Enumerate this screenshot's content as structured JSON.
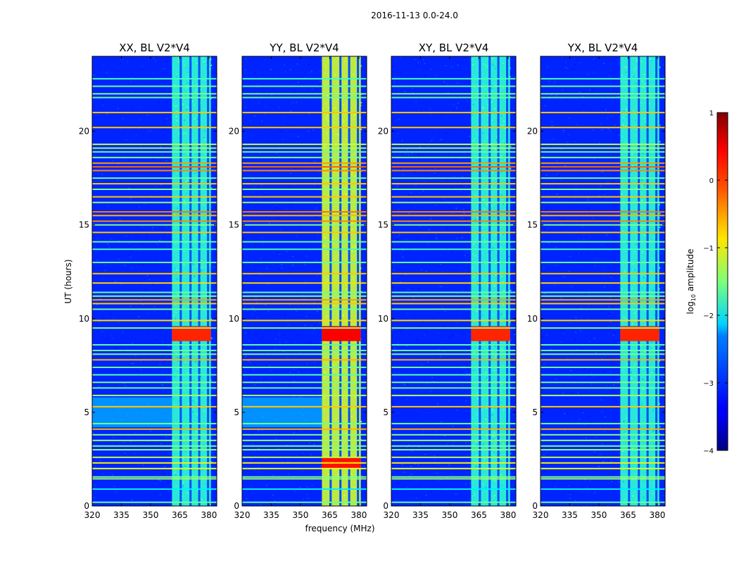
{
  "figure": {
    "suptitle": "2016-11-13 0.0-24.0"
  },
  "chart_data": {
    "type": "heatmap",
    "suptitle": "2016-11-13 0.0-24.0",
    "xlabel": "frequency (MHz)",
    "ylabel": "UT (hours)",
    "xlim": [
      320,
      384
    ],
    "ylim": [
      0,
      24
    ],
    "xticks": [
      320,
      335,
      350,
      365,
      380
    ],
    "yticks": [
      0,
      5,
      10,
      15,
      20
    ],
    "colorbar": {
      "label": "log10 amplitude",
      "label_main": "log",
      "label_sub": "10",
      "label_tail": " amplitude",
      "range": [
        -4,
        1
      ],
      "ticks": [
        1,
        0,
        -1,
        -2,
        -3,
        -4
      ],
      "tick_labels": [
        "1",
        "0",
        "−1",
        "−2",
        "−3",
        "−4"
      ],
      "colormap": "jet"
    },
    "panels": [
      {
        "title": "XX, BL V2*V4",
        "key": "xx",
        "band_level": -1.9,
        "bright_rows": [
          [
            8.8,
            9.6,
            0.2
          ]
        ]
      },
      {
        "title": "YY, BL V2*V4",
        "key": "yy",
        "band_level": -1.1,
        "bright_rows": [
          [
            8.8,
            9.6,
            0.4
          ],
          [
            2.0,
            2.6,
            0.3
          ]
        ]
      },
      {
        "title": "XY, BL V2*V4",
        "key": "xy",
        "band_level": -1.9,
        "bright_rows": [
          [
            8.8,
            9.6,
            0.2
          ]
        ]
      },
      {
        "title": "YX, BL V2*V4",
        "key": "yx",
        "band_level": -1.9,
        "bright_rows": [
          [
            8.8,
            9.6,
            0.2
          ]
        ]
      }
    ],
    "background_level": -3.2,
    "band_frequency_range": [
      361,
      381
    ],
    "band_gaps_mhz": [
      365.5,
      370.5,
      375.0,
      379.5
    ],
    "rfi_lines_ut": [
      {
        "ut": 0.2,
        "level": -1.6
      },
      {
        "ut": 0.9,
        "level": -2.2
      },
      {
        "ut": 1.45,
        "level": -1.4
      },
      {
        "ut": 1.55,
        "level": -1.5
      },
      {
        "ut": 2.0,
        "level": -1.0
      },
      {
        "ut": 2.3,
        "level": -0.8
      },
      {
        "ut": 2.6,
        "level": -1.2
      },
      {
        "ut": 3.0,
        "level": -1.4
      },
      {
        "ut": 3.2,
        "level": -1.5
      },
      {
        "ut": 3.5,
        "level": -1.4
      },
      {
        "ut": 3.8,
        "level": -1.5
      },
      {
        "ut": 4.1,
        "level": -0.5
      },
      {
        "ut": 4.4,
        "level": -1.6
      },
      {
        "ut": 5.3,
        "level": -0.6
      },
      {
        "ut": 5.9,
        "level": -1.3
      },
      {
        "ut": 6.3,
        "level": -1.6
      },
      {
        "ut": 6.6,
        "level": -1.5
      },
      {
        "ut": 7.0,
        "level": -1.7
      },
      {
        "ut": 7.4,
        "level": -1.6
      },
      {
        "ut": 7.8,
        "level": -0.5
      },
      {
        "ut": 8.1,
        "level": -1.5
      },
      {
        "ut": 8.3,
        "level": -1.6
      },
      {
        "ut": 8.6,
        "level": -1.7
      },
      {
        "ut": 9.5,
        "level": -1.5
      },
      {
        "ut": 9.9,
        "level": -0.7
      },
      {
        "ut": 10.5,
        "level": -1.6
      },
      {
        "ut": 10.8,
        "level": -0.6
      },
      {
        "ut": 11.0,
        "level": -0.4
      },
      {
        "ut": 11.2,
        "level": -1.5
      },
      {
        "ut": 11.4,
        "level": -1.6
      },
      {
        "ut": 11.9,
        "level": -0.7
      },
      {
        "ut": 12.4,
        "level": -0.6
      },
      {
        "ut": 13.0,
        "level": -1.6
      },
      {
        "ut": 13.7,
        "level": -1.8
      },
      {
        "ut": 14.1,
        "level": -1.6
      },
      {
        "ut": 14.6,
        "level": -0.6
      },
      {
        "ut": 15.0,
        "level": -1.5
      },
      {
        "ut": 15.2,
        "level": -0.3
      },
      {
        "ut": 15.5,
        "level": -0.5
      },
      {
        "ut": 15.7,
        "level": -0.2
      },
      {
        "ut": 16.2,
        "level": -1.4
      },
      {
        "ut": 16.5,
        "level": -0.6
      },
      {
        "ut": 16.9,
        "level": -1.5
      },
      {
        "ut": 17.2,
        "level": -0.6
      },
      {
        "ut": 17.5,
        "level": -1.6
      },
      {
        "ut": 17.9,
        "level": -0.3
      },
      {
        "ut": 18.1,
        "level": -0.1
      },
      {
        "ut": 18.3,
        "level": -0.4
      },
      {
        "ut": 18.6,
        "level": -1.5
      },
      {
        "ut": 18.9,
        "level": -1.6
      },
      {
        "ut": 19.1,
        "level": -1.3
      },
      {
        "ut": 19.3,
        "level": -1.2
      },
      {
        "ut": 20.2,
        "level": -0.6
      },
      {
        "ut": 21.0,
        "level": -0.6
      },
      {
        "ut": 21.8,
        "level": -1.6
      },
      {
        "ut": 22.0,
        "level": -1.5
      },
      {
        "ut": 22.4,
        "level": -1.6
      },
      {
        "ut": 22.8,
        "level": -1.8
      }
    ]
  }
}
